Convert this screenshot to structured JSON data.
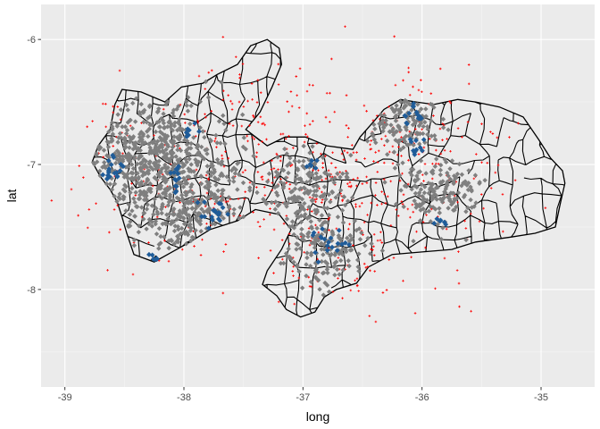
{
  "chart_data": {
    "type": "scatter",
    "title": "",
    "xlabel": "long",
    "ylabel": "lat",
    "xlim": [
      -39.2,
      -34.55
    ],
    "ylim": [
      -8.78,
      -5.72
    ],
    "x_ticks": [
      -39,
      -38,
      -37,
      -36,
      -35
    ],
    "x_tick_labels": [
      "-39",
      "-38",
      "-37",
      "-36",
      "-35"
    ],
    "y_ticks": [
      -6,
      -7,
      -8
    ],
    "y_tick_labels": [
      "-6",
      "-7",
      "-8"
    ],
    "grid": true,
    "panel_background": "#ebebeb",
    "legend": "none",
    "layers": [
      {
        "kind": "polygon-outline",
        "description_color": "#000000",
        "color": "#000000",
        "outline": [
          [
            -38.77,
            -6.98
          ],
          [
            -38.72,
            -6.85
          ],
          [
            -38.62,
            -6.72
          ],
          [
            -38.58,
            -6.52
          ],
          [
            -38.52,
            -6.4
          ],
          [
            -38.36,
            -6.42
          ],
          [
            -38.16,
            -6.5
          ],
          [
            -38.02,
            -6.38
          ],
          [
            -37.84,
            -6.35
          ],
          [
            -37.72,
            -6.28
          ],
          [
            -37.55,
            -6.2
          ],
          [
            -37.44,
            -6.05
          ],
          [
            -37.3,
            -6.0
          ],
          [
            -37.2,
            -6.07
          ],
          [
            -37.18,
            -6.2
          ],
          [
            -37.26,
            -6.38
          ],
          [
            -37.36,
            -6.58
          ],
          [
            -37.48,
            -6.72
          ],
          [
            -37.3,
            -6.85
          ],
          [
            -37.15,
            -6.78
          ],
          [
            -36.98,
            -6.78
          ],
          [
            -36.8,
            -6.85
          ],
          [
            -36.58,
            -6.88
          ],
          [
            -36.52,
            -6.78
          ],
          [
            -36.4,
            -6.65
          ],
          [
            -36.32,
            -6.56
          ],
          [
            -36.18,
            -6.48
          ],
          [
            -36.05,
            -6.5
          ],
          [
            -35.9,
            -6.52
          ],
          [
            -35.7,
            -6.48
          ],
          [
            -35.55,
            -6.5
          ],
          [
            -35.35,
            -6.54
          ],
          [
            -35.15,
            -6.62
          ],
          [
            -35.02,
            -6.8
          ],
          [
            -34.92,
            -6.95
          ],
          [
            -34.82,
            -7.05
          ],
          [
            -34.8,
            -7.15
          ],
          [
            -34.84,
            -7.32
          ],
          [
            -34.88,
            -7.5
          ],
          [
            -35.05,
            -7.55
          ],
          [
            -35.25,
            -7.58
          ],
          [
            -35.55,
            -7.62
          ],
          [
            -35.75,
            -7.68
          ],
          [
            -36.0,
            -7.7
          ],
          [
            -36.25,
            -7.72
          ],
          [
            -36.45,
            -7.82
          ],
          [
            -36.55,
            -7.95
          ],
          [
            -36.72,
            -8.0
          ],
          [
            -36.82,
            -8.06
          ],
          [
            -36.9,
            -8.18
          ],
          [
            -37.02,
            -8.22
          ],
          [
            -37.14,
            -8.16
          ],
          [
            -37.22,
            -8.05
          ],
          [
            -37.34,
            -7.96
          ],
          [
            -37.3,
            -7.85
          ],
          [
            -37.18,
            -7.68
          ],
          [
            -37.1,
            -7.52
          ],
          [
            -37.2,
            -7.4
          ],
          [
            -37.4,
            -7.36
          ],
          [
            -37.55,
            -7.45
          ],
          [
            -37.78,
            -7.52
          ],
          [
            -37.95,
            -7.62
          ],
          [
            -38.1,
            -7.7
          ],
          [
            -38.25,
            -7.78
          ],
          [
            -38.42,
            -7.72
          ],
          [
            -38.48,
            -7.55
          ],
          [
            -38.52,
            -7.42
          ],
          [
            -38.56,
            -7.3
          ],
          [
            -38.62,
            -7.2
          ],
          [
            -38.7,
            -7.1
          ],
          [
            -38.77,
            -6.98
          ]
        ]
      },
      {
        "kind": "points",
        "color": "#ff0000",
        "shape": "plus-small",
        "count": 620,
        "centers": [
          [
            -38.3,
            -6.95
          ],
          [
            -37.9,
            -7.35
          ],
          [
            -37.0,
            -7.15
          ],
          [
            -36.7,
            -7.75
          ],
          [
            -36.15,
            -6.75
          ],
          [
            -35.85,
            -7.2
          ],
          [
            -36.6,
            -6.95
          ],
          [
            -37.5,
            -6.55
          ]
        ],
        "spread": [
          0.65,
          0.45
        ]
      },
      {
        "kind": "points",
        "color": "#7f7f7f",
        "shape": "diamond",
        "count": 1400,
        "clusters": [
          {
            "center": [
              -38.3,
              -6.95
            ],
            "spread": [
              0.32,
              0.26
            ],
            "share": 0.42
          },
          {
            "center": [
              -37.95,
              -7.42
            ],
            "spread": [
              0.22,
              0.18
            ],
            "share": 0.14
          },
          {
            "center": [
              -37.0,
              -7.17
            ],
            "spread": [
              0.19,
              0.17
            ],
            "share": 0.12
          },
          {
            "center": [
              -36.8,
              -7.67
            ],
            "spread": [
              0.17,
              0.14
            ],
            "share": 0.11
          },
          {
            "center": [
              -36.15,
              -6.65
            ],
            "spread": [
              0.14,
              0.13
            ],
            "share": 0.09
          },
          {
            "center": [
              -35.88,
              -7.22
            ],
            "spread": [
              0.16,
              0.14
            ],
            "share": 0.12
          }
        ]
      },
      {
        "kind": "points",
        "color": "#1f5c99",
        "shape": "diamond",
        "count": 120,
        "clusters": [
          {
            "center": [
              -38.6,
              -7.05
            ],
            "spread": [
              0.05,
              0.05
            ],
            "share": 0.15
          },
          {
            "center": [
              -38.05,
              -7.1
            ],
            "spread": [
              0.04,
              0.06
            ],
            "share": 0.12
          },
          {
            "center": [
              -37.78,
              -7.38
            ],
            "spread": [
              0.06,
              0.05
            ],
            "share": 0.16
          },
          {
            "center": [
              -37.95,
              -6.72
            ],
            "spread": [
              0.05,
              0.03
            ],
            "share": 0.06
          },
          {
            "center": [
              -36.95,
              -6.98
            ],
            "spread": [
              0.03,
              0.03
            ],
            "share": 0.05
          },
          {
            "center": [
              -36.78,
              -7.6
            ],
            "spread": [
              0.08,
              0.06
            ],
            "share": 0.16
          },
          {
            "center": [
              -36.08,
              -6.6
            ],
            "spread": [
              0.06,
              0.05
            ],
            "share": 0.12
          },
          {
            "center": [
              -36.05,
              -6.85
            ],
            "spread": [
              0.05,
              0.04
            ],
            "share": 0.08
          },
          {
            "center": [
              -35.85,
              -7.45
            ],
            "spread": [
              0.05,
              0.02
            ],
            "share": 0.05
          },
          {
            "center": [
              -38.25,
              -7.75
            ],
            "spread": [
              0.02,
              0.02
            ],
            "share": 0.05
          }
        ]
      }
    ]
  }
}
